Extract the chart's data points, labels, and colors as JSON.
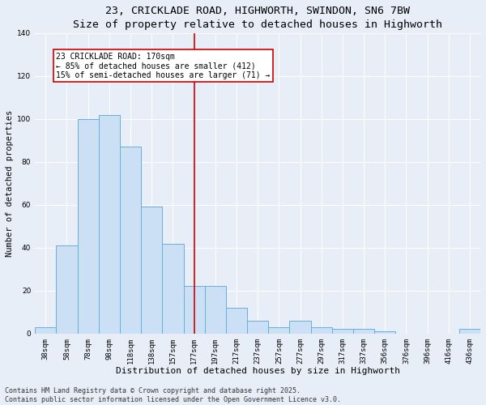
{
  "title": "23, CRICKLADE ROAD, HIGHWORTH, SWINDON, SN6 7BW",
  "subtitle": "Size of property relative to detached houses in Highworth",
  "xlabel": "Distribution of detached houses by size in Highworth",
  "ylabel": "Number of detached properties",
  "bar_labels": [
    "38sqm",
    "58sqm",
    "78sqm",
    "98sqm",
    "118sqm",
    "138sqm",
    "157sqm",
    "177sqm",
    "197sqm",
    "217sqm",
    "237sqm",
    "257sqm",
    "277sqm",
    "297sqm",
    "317sqm",
    "337sqm",
    "356sqm",
    "376sqm",
    "396sqm",
    "416sqm",
    "436sqm"
  ],
  "bar_values": [
    3,
    41,
    100,
    102,
    87,
    59,
    42,
    22,
    22,
    12,
    6,
    3,
    6,
    3,
    2,
    2,
    1,
    0,
    0,
    0,
    2
  ],
  "bar_color": "#cce0f5",
  "bar_edge_color": "#6aaed6",
  "vline_x": 7,
  "vline_color": "#cc0000",
  "annotation_text": "23 CRICKLADE ROAD: 170sqm\n← 85% of detached houses are smaller (412)\n15% of semi-detached houses are larger (71) →",
  "annotation_box_color": "#ffffff",
  "annotation_box_edge_color": "#cc0000",
  "ylim": [
    0,
    140
  ],
  "yticks": [
    0,
    20,
    40,
    60,
    80,
    100,
    120,
    140
  ],
  "bg_color": "#e8eef8",
  "plot_bg_color": "#e8eef8",
  "footer_text": "Contains HM Land Registry data © Crown copyright and database right 2025.\nContains public sector information licensed under the Open Government Licence v3.0.",
  "title_fontsize": 9.5,
  "xlabel_fontsize": 8,
  "ylabel_fontsize": 7.5,
  "tick_fontsize": 6.5,
  "annotation_fontsize": 7,
  "footer_fontsize": 6
}
